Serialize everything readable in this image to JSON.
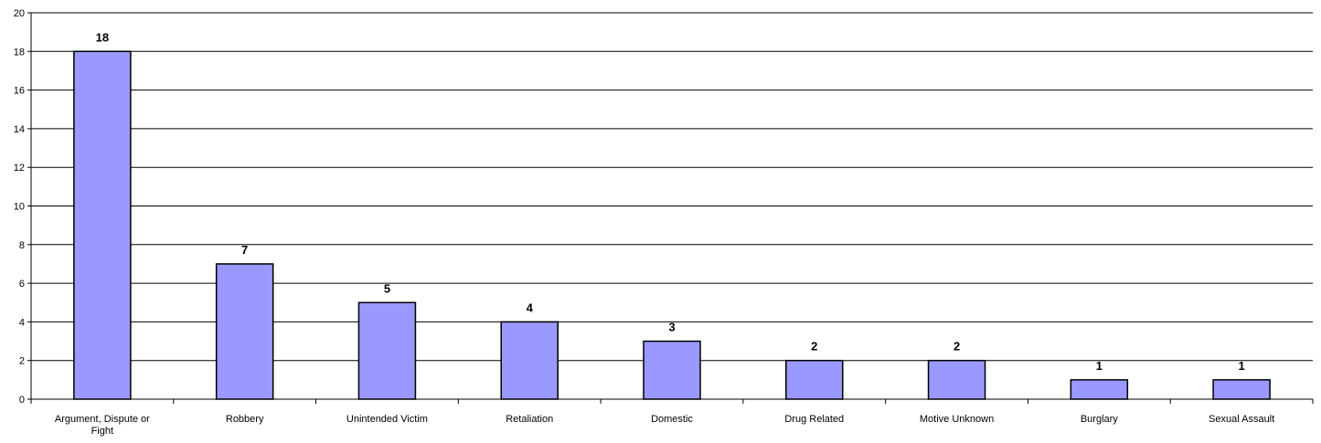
{
  "chart_data": {
    "type": "bar",
    "categories": [
      "Argument, Dispute or Fight",
      "Robbery",
      "Unintended Victim",
      "Retaliation",
      "Domestic",
      "Drug Related",
      "Motive Unknown",
      "Burglary",
      "Sexual Assault"
    ],
    "category_label_lines": [
      [
        "Argument, Dispute or",
        "Fight"
      ],
      [
        "Robbery"
      ],
      [
        "Unintended Victim"
      ],
      [
        "Retaliation"
      ],
      [
        "Domestic"
      ],
      [
        "Drug Related"
      ],
      [
        "Motive Unknown"
      ],
      [
        "Burglary"
      ],
      [
        "Sexual Assault"
      ]
    ],
    "values": [
      18,
      7,
      5,
      4,
      3,
      2,
      2,
      1,
      1
    ],
    "ylim": [
      0,
      20
    ],
    "yticks": [
      0,
      2,
      4,
      6,
      8,
      10,
      12,
      14,
      16,
      18,
      20
    ],
    "grid": true,
    "data_labels": true,
    "bar_color": "#9999ff",
    "bar_edge_color": "#000000",
    "title": "",
    "xlabel": "",
    "ylabel": ""
  }
}
